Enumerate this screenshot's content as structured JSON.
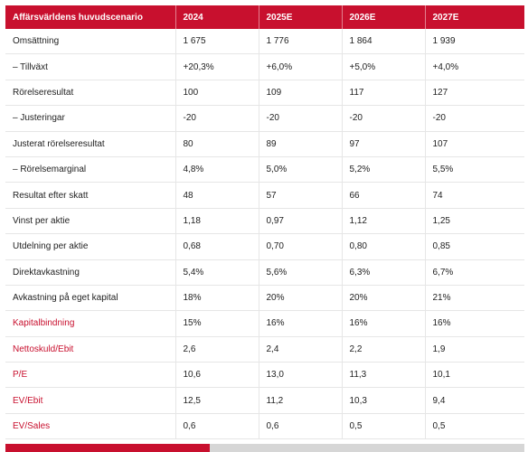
{
  "table": {
    "headers": [
      "Affärsvärldens huvudscenario",
      "2024",
      "2025E",
      "2026E",
      "2027E"
    ],
    "rows": [
      {
        "label": "Omsättning",
        "values": [
          "1 675",
          "1 776",
          "1 864",
          "1 939"
        ],
        "link": false
      },
      {
        "label": "– Tillväxt",
        "values": [
          "+20,3%",
          "+6,0%",
          "+5,0%",
          "+4,0%"
        ],
        "link": false
      },
      {
        "label": "Rörelseresultat",
        "values": [
          "100",
          "109",
          "117",
          "127"
        ],
        "link": false
      },
      {
        "label": "– Justeringar",
        "values": [
          "-20",
          "-20",
          "-20",
          "-20"
        ],
        "link": false
      },
      {
        "label": "Justerat rörelseresultat",
        "values": [
          "80",
          "89",
          "97",
          "107"
        ],
        "link": false
      },
      {
        "label": "– Rörelsemarginal",
        "values": [
          "4,8%",
          "5,0%",
          "5,2%",
          "5,5%"
        ],
        "link": false
      },
      {
        "label": "Resultat efter skatt",
        "values": [
          "48",
          "57",
          "66",
          "74"
        ],
        "link": false
      },
      {
        "label": "Vinst per aktie",
        "values": [
          "1,18",
          "0,97",
          "1,12",
          "1,25"
        ],
        "link": false
      },
      {
        "label": "Utdelning per aktie",
        "values": [
          "0,68",
          "0,70",
          "0,80",
          "0,85"
        ],
        "link": false
      },
      {
        "label": "Direktavkastning",
        "values": [
          "5,4%",
          "5,6%",
          "6,3%",
          "6,7%"
        ],
        "link": false
      },
      {
        "label": "Avkastning på eget kapital",
        "values": [
          "18%",
          "20%",
          "20%",
          "21%"
        ],
        "link": false
      },
      {
        "label": "Kapitalbindning",
        "values": [
          "15%",
          "16%",
          "16%",
          "16%"
        ],
        "link": true
      },
      {
        "label": "Nettoskuld/Ebit",
        "values": [
          "2,6",
          "2,4",
          "2,2",
          "1,9"
        ],
        "link": true
      },
      {
        "label": "P/E",
        "values": [
          "10,6",
          "13,0",
          "11,3",
          "10,1"
        ],
        "link": true
      },
      {
        "label": "EV/Ebit",
        "values": [
          "12,5",
          "11,2",
          "10,3",
          "9,4"
        ],
        "link": true
      },
      {
        "label": "EV/Sales",
        "values": [
          "0,6",
          "0,6",
          "0,5",
          "0,5"
        ],
        "link": true
      }
    ]
  },
  "colors": {
    "accent": "#c8102e",
    "scroll_track": "#d6d6d6"
  }
}
